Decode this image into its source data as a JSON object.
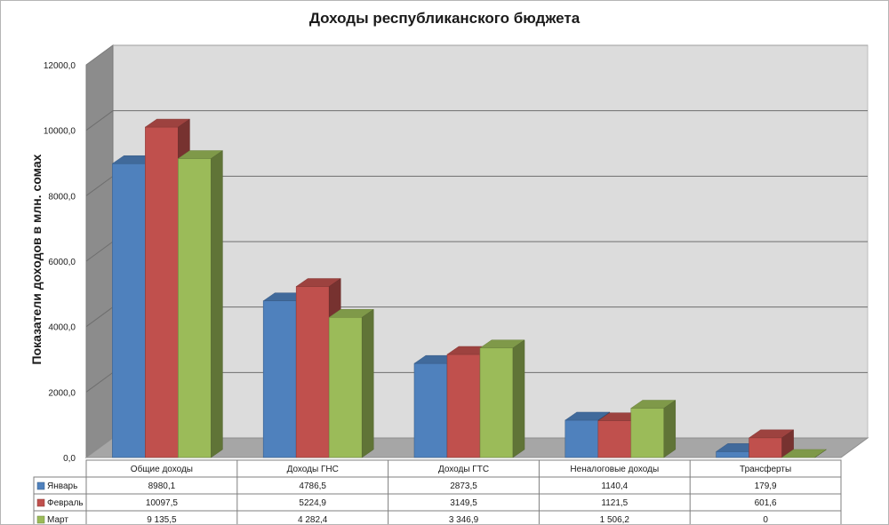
{
  "chart_data": {
    "type": "bar",
    "title": "Доходы республиканского бюджета",
    "ylabel": "Показатели доходов в млн. сомах",
    "ylim": [
      0,
      12000
    ],
    "ytick_labels": [
      "0,0",
      "2000,0",
      "4000,0",
      "6000,0",
      "8000,0",
      "10000,0",
      "12000,0"
    ],
    "grid": true,
    "legend": "data-table-left",
    "categories": [
      "Общие доходы",
      "Доходы ГНС",
      "Доходы ГТС",
      "Неналоговые доходы",
      "Трансферты"
    ],
    "series": [
      {
        "name": "Январь",
        "values": [
          8980.1,
          4786.5,
          2873.5,
          1140.4,
          179.9
        ],
        "labels": [
          "8980,1",
          "4786,5",
          "2873,5",
          "1140,4",
          "179,9"
        ],
        "color": "#4f81bd"
      },
      {
        "name": "Февраль",
        "values": [
          10097.5,
          5224.9,
          3149.5,
          1121.5,
          601.6
        ],
        "labels": [
          "10097,5",
          "5224,9",
          "3149,5",
          "1121,5",
          "601,6"
        ],
        "color": "#c0504d"
      },
      {
        "name": "Март",
        "values": [
          9135.5,
          4282.4,
          3346.9,
          1506.2,
          0
        ],
        "labels": [
          "9 135,5",
          "4 282,4",
          "3 346,9",
          "1 506,2",
          "0"
        ],
        "color": "#9bbb59"
      }
    ]
  }
}
